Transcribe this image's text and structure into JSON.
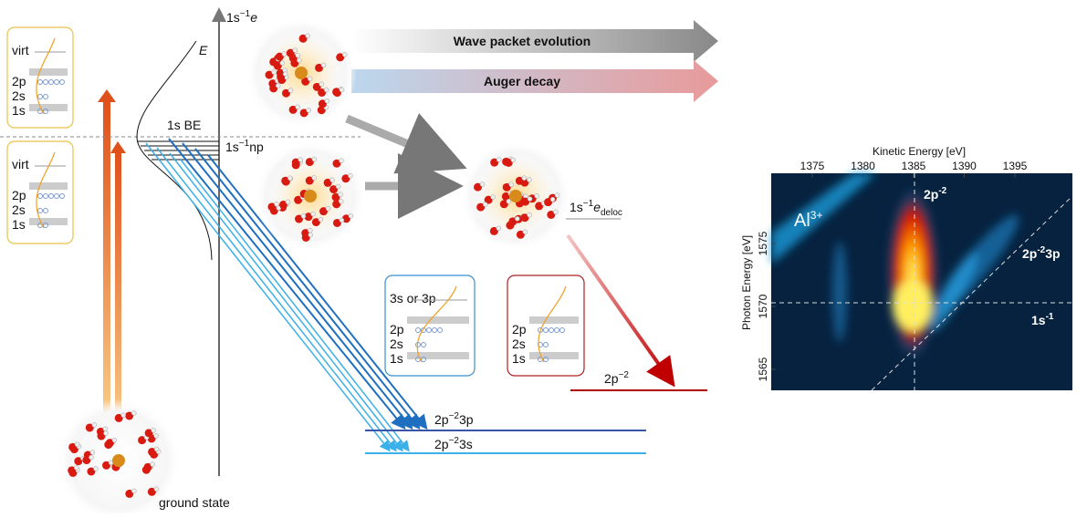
{
  "energy_axis": {
    "label": "E",
    "top": {
      "base": "1s",
      "sup": "−1",
      "tail": "e"
    }
  },
  "levels": {
    "binding": "1s BE",
    "np": {
      "base": "1s",
      "sup": "−1",
      "tail": "np"
    },
    "deloc": {
      "base": "1s",
      "sup": "−1",
      "tail": "e",
      "sub": "deloc"
    },
    "final_auger": {
      "base": "2p",
      "sup": "−2"
    },
    "final_3p": {
      "base": "2p",
      "sup": "−2",
      "tail": "3p"
    },
    "final_3s": {
      "base": "2p",
      "sup": "−2",
      "tail": "3s"
    }
  },
  "arrows": {
    "wave": "Wave packet evolution",
    "auger": "Auger decay"
  },
  "ground": "ground state",
  "boxes": [
    {
      "labels": [
        "virt",
        "2p",
        "2s",
        "1s"
      ]
    },
    {
      "labels": [
        "virt",
        "2p",
        "2s",
        "1s"
      ]
    },
    {
      "labels": [
        "3s or 3p",
        "2p",
        "2s",
        "1s"
      ]
    },
    {
      "labels": [
        "2p",
        "2s",
        "1s"
      ]
    }
  ],
  "map": {
    "x_label": "Kinetic Energy [eV]",
    "x_ticks": [
      "1375",
      "1380",
      "1385",
      "1390",
      "1395"
    ],
    "y_label": "Photon Energy [eV]",
    "y_ticks": [
      "1565",
      "1570",
      "1575"
    ],
    "annotations": {
      "ion": {
        "base": "Al",
        "sup": "3+"
      },
      "p2": {
        "base": "2p",
        "sup": "-2"
      },
      "p23p": {
        "base": "2p",
        "sup": "-2",
        "tail": "3p"
      },
      "s1": {
        "base": "1s",
        "sup": "-1"
      }
    }
  }
}
